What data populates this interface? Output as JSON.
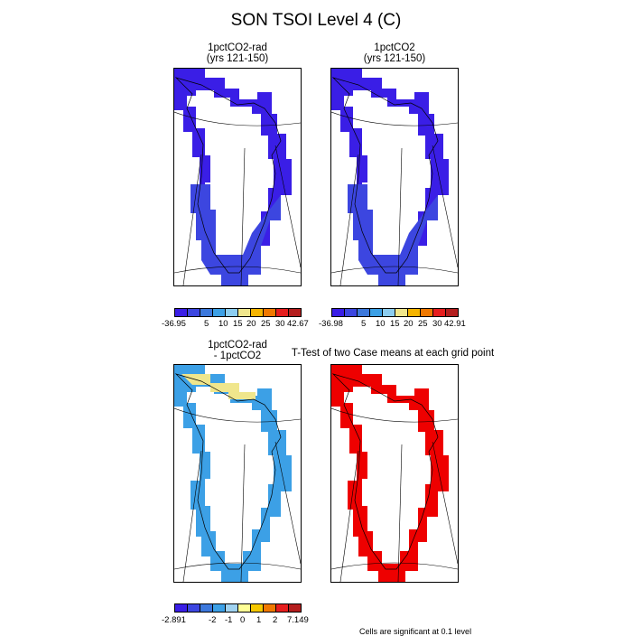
{
  "title": "SON TSOI Level 4 (C)",
  "panels": {
    "p1": {
      "title_line1": "1pctCO2-rad",
      "title_line2": "(yrs 121-150)"
    },
    "p2": {
      "title_line1": "1pctCO2",
      "title_line2": "(yrs 121-150)"
    },
    "p3": {
      "title_line1": "1pctCO2-rad",
      "title_line2": "- 1pctCO2"
    },
    "p4": {
      "title_line1": "T-Test of two Case means at each grid point"
    }
  },
  "colorbars": {
    "cb1": {
      "colors": [
        "#3a1ee6",
        "#3c46e0",
        "#3c78dc",
        "#3ca0e6",
        "#8ccdf0",
        "#f0e68c",
        "#f5b400",
        "#f07800",
        "#e61e1e",
        "#b41e1e"
      ],
      "labels": [
        "-36.95",
        "5",
        "10",
        "15",
        "20",
        "25",
        "30",
        "42.67"
      ]
    },
    "cb2": {
      "colors": [
        "#3a1ee6",
        "#3c46e0",
        "#3c78dc",
        "#3ca0e6",
        "#8ccdf0",
        "#f0e68c",
        "#f5b400",
        "#f07800",
        "#e61e1e",
        "#b41e1e"
      ],
      "labels": [
        "-36.98",
        "5",
        "10",
        "15",
        "20",
        "25",
        "30",
        "42.91"
      ]
    },
    "cb3": {
      "colors": [
        "#3a1ee6",
        "#3c46e0",
        "#3c78dc",
        "#3ca0e6",
        "#a0d2f0",
        "#ffff96",
        "#f5c800",
        "#f07800",
        "#e61e1e",
        "#b41e1e"
      ],
      "labels": [
        "-2.891",
        "-2",
        "-1",
        "0",
        "1",
        "2",
        "7.149"
      ]
    }
  },
  "footnote": "Cells are significant at 0.1 level",
  "colors": {
    "panel1_fill": "#3a1ee6",
    "panel2_fill": "#3a1ee6",
    "panel3_fill": "#3ca0e6",
    "panel4_fill": "#ee0000"
  }
}
